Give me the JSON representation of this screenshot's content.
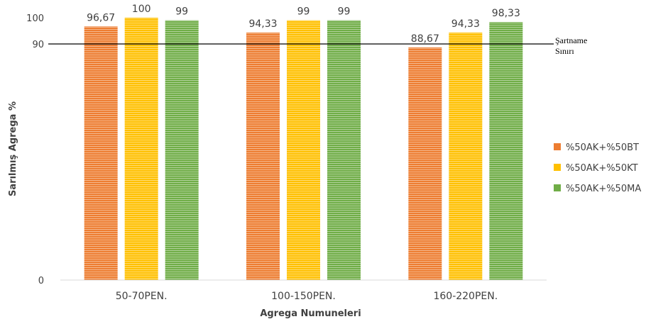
{
  "chart_data": {
    "type": "bar",
    "categories": [
      "50-70PEN.",
      "100-150PEN.",
      "160-220PEN."
    ],
    "series": [
      {
        "name": "%50AK+%50BT",
        "values": [
          96.67,
          94.33,
          88.67
        ],
        "labels": [
          "96,67",
          "94,33",
          "88,67"
        ],
        "color": "#ED7D31"
      },
      {
        "name": "%50AK+%50KT",
        "values": [
          100,
          99,
          94.33
        ],
        "labels": [
          "100",
          "99",
          "94,33"
        ],
        "color": "#FFC000"
      },
      {
        "name": "%50AK+%50MA",
        "values": [
          99,
          99,
          98.33
        ],
        "labels": [
          "99",
          "99",
          "98,33"
        ],
        "color": "#70AD47"
      }
    ],
    "xlabel": "Agrega Numuneleri",
    "ylabel": "Sarılmış Agrega %",
    "yticks": [
      "0",
      "90",
      "100"
    ],
    "ylim": [
      0,
      100
    ],
    "reference_line": {
      "value": 90,
      "label_lines": [
        "Şartname",
        "Sınırı"
      ],
      "color": "#000000"
    },
    "legend_position": "right",
    "bar_pattern": "horizontal-stripes",
    "grid": false
  }
}
